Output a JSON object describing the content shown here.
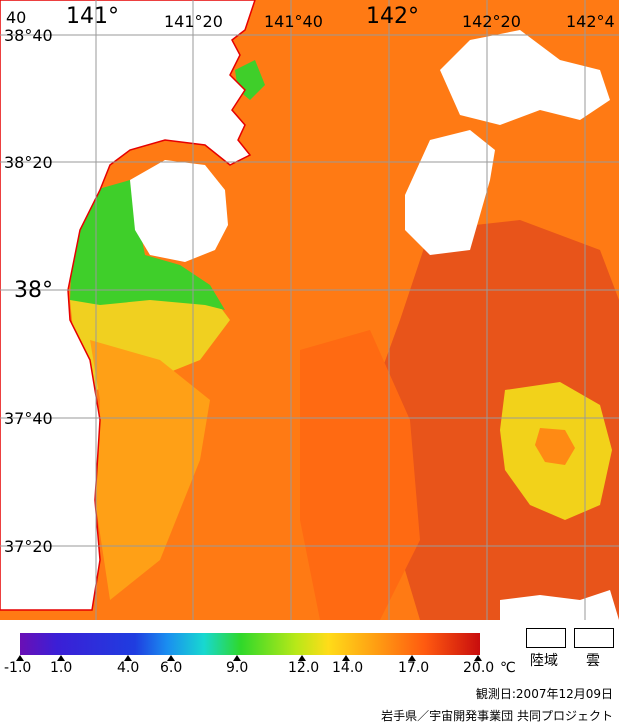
{
  "map": {
    "lat_labels": [
      "38°40",
      "38°20",
      "38°",
      "37°40",
      "37°20"
    ],
    "lon_labels": [
      "141°",
      "141°20",
      "141°40",
      "142°",
      "142°20",
      "142°4"
    ],
    "corner_label": "40"
  },
  "legend": {
    "ticks": [
      "-1.0",
      "1.0",
      "4.0",
      "6.0",
      "9.0",
      "12.0",
      "14.0",
      "17.0",
      "20.0"
    ],
    "unit": "℃",
    "land_label": "陸域",
    "cloud_label": "雲"
  },
  "footer": {
    "observation_date": "観測日:2007年12月09日",
    "credit": "岩手県／宇宙開発事業団 共同プロジェクト"
  },
  "colors": {
    "sea_orange": "#ff7a14",
    "warm_red": "#e84a10",
    "yellow": "#f2d21a",
    "green": "#3fcf2a",
    "coast_red": "#e60000",
    "grid_gray": "#9a9a9a"
  }
}
